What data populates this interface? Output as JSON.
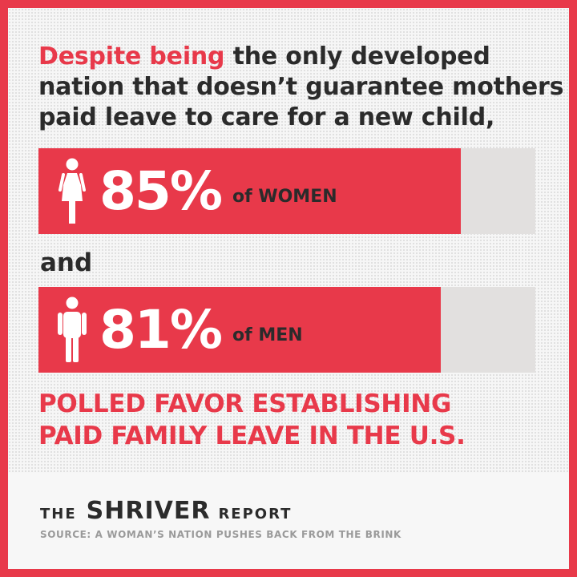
{
  "headline": {
    "accent": "Despite being",
    "line1_rest": " the only developed",
    "line2": "nation that doesn’t guarantee mothers",
    "line3": "paid leave to care for a new child,"
  },
  "conjunction": "and",
  "conclusion": {
    "line1": "POLLED FAVOR ESTABLISHING",
    "line2": "PAID FAMILY LEAVE IN THE U.S."
  },
  "brand": {
    "prefix": "THE",
    "name": "SHRIVER",
    "suffix": "REPORT"
  },
  "source": "SOURCE: A WOMAN’S NATION PUSHES BACK FROM THE BRINK",
  "colors": {
    "accent": "#e8394a",
    "track": "#e2e0df",
    "text": "#2b2b2b"
  },
  "chart_data": {
    "type": "bar",
    "categories": [
      "WOMEN",
      "MEN"
    ],
    "values": [
      85,
      81
    ],
    "value_labels": [
      "85%",
      "81%"
    ],
    "category_labels": [
      "of WOMEN",
      "of MEN"
    ],
    "icons": [
      "woman-icon",
      "man-icon"
    ],
    "ylim": [
      0,
      100
    ]
  }
}
